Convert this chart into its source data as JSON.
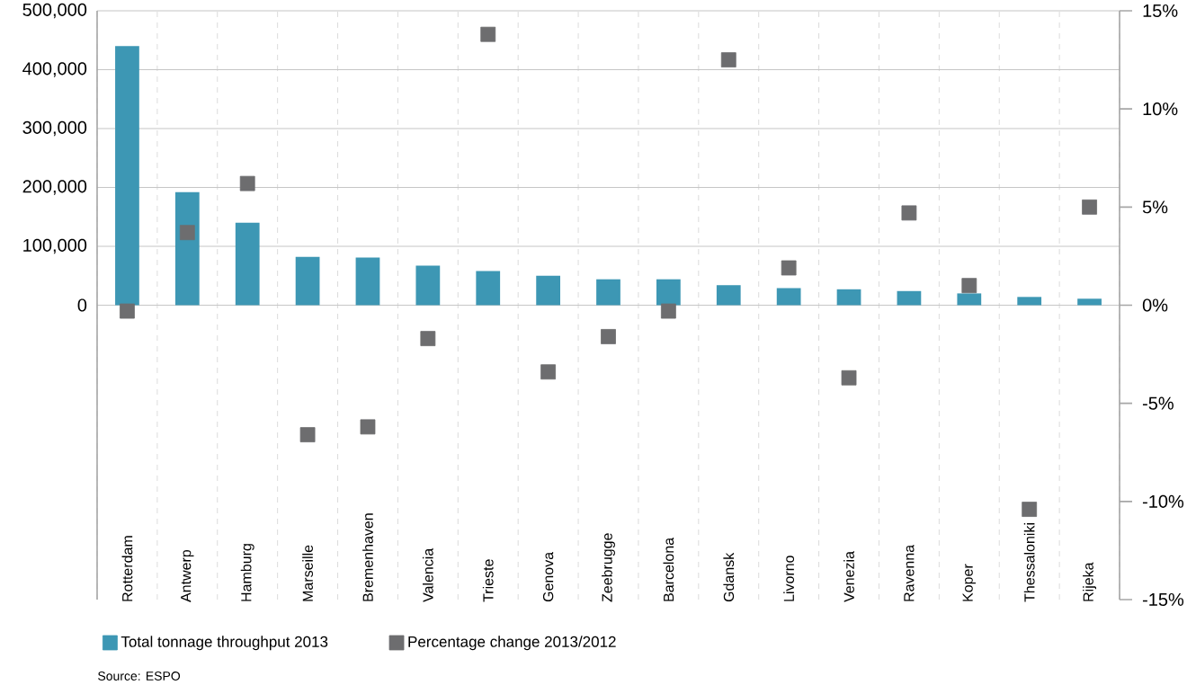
{
  "chart_data": {
    "type": "bar",
    "categories": [
      "Rotterdam",
      "Antwerp",
      "Hamburg",
      "Marseille",
      "Bremenhaven",
      "Valencia",
      "Trieste",
      "Genova",
      "Zeebrugge",
      "Barcelona",
      "Gdansk",
      "Livorno",
      "Venezia",
      "Ravenna",
      "Koper",
      "Thessaloniki",
      "Rijeka"
    ],
    "series": [
      {
        "name": "Total tonnage throughput 2013",
        "type": "bar",
        "color": "#3d97b4",
        "values": [
          440000,
          192000,
          140000,
          82000,
          81000,
          67000,
          58000,
          50000,
          44000,
          44000,
          34000,
          29000,
          27000,
          24000,
          20000,
          14000,
          11000
        ]
      },
      {
        "name": "Percentage change 2013/2012",
        "type": "scatter",
        "axis": "y2",
        "marker": "square",
        "color": "#6d6d6f",
        "values": [
          -0.3,
          3.7,
          6.2,
          -6.6,
          -6.2,
          -1.7,
          13.8,
          -3.4,
          -1.6,
          -0.3,
          12.5,
          1.9,
          -3.7,
          4.7,
          1.0,
          -10.4,
          5.0
        ]
      }
    ],
    "ylim": [
      -500000,
      500000
    ],
    "yticks": [
      0,
      {
        "value": 100000,
        "label": "100,000"
      },
      {
        "value": 200000,
        "label": "200,000"
      },
      {
        "value": 300000,
        "label": "300,000"
      },
      {
        "value": 400000,
        "label": "400,000"
      },
      {
        "value": 500000,
        "label": "500,000"
      }
    ],
    "y2lim": [
      -15,
      15
    ],
    "y2ticks": [
      {
        "value": -15,
        "label": "-15%"
      },
      {
        "value": -10,
        "label": "-10%"
      },
      {
        "value": -5,
        "label": "-5%"
      },
      {
        "value": 0,
        "label": "0%"
      },
      {
        "value": 5,
        "label": "5%"
      },
      {
        "value": 10,
        "label": "10%"
      },
      {
        "value": 15,
        "label": "15%"
      }
    ],
    "grid": true,
    "legend": "bottom",
    "annotations": [
      "Source: ESPO"
    ]
  }
}
